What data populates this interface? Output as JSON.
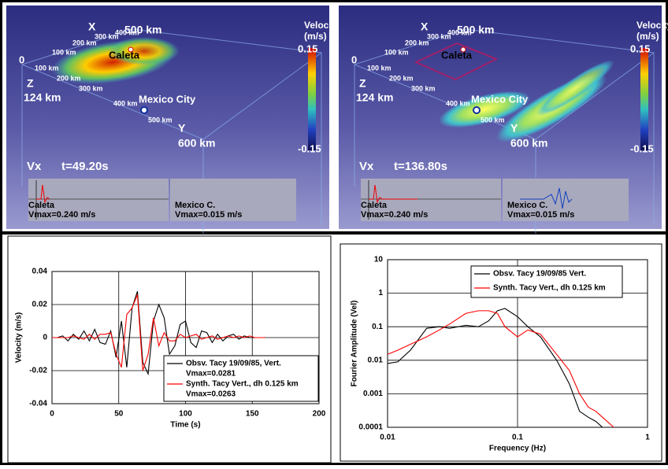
{
  "panels": [
    {
      "labels": [
        "X",
        "500 km",
        "Velocity",
        "(m/s)",
        "0.15",
        "-0.15",
        "0",
        "100 km",
        "200 km",
        "300 km",
        "400 km",
        "Caleta",
        "Z",
        "124 km",
        "100 km",
        "200 km",
        "300 km",
        "400 km",
        "Mexico City",
        "500 km",
        "Y",
        "600 km",
        "Vx",
        "t=49.20s",
        "Caleta",
        "Vmax=0.240 m/s",
        "Mexico C.",
        "Vmax=0.015 m/s"
      ]
    },
    {
      "labels": [
        "X",
        "500 km",
        "Velocity",
        "(m/s)",
        "0.15",
        "-0.15",
        "0",
        "100 km",
        "200 km",
        "300 km",
        "400 km",
        "Caleta",
        "Z",
        "124 km",
        "100 km",
        "200 km",
        "300 km",
        "400 km",
        "Mexico City",
        "500 km",
        "Y",
        "600 km",
        "Vx",
        "t=136.80s",
        "Caleta",
        "Vmax=0.240 m/s",
        "Mexico C.",
        "Vmax=0.015 m/s"
      ]
    }
  ],
  "chart_data": [
    {
      "type": "line",
      "xlabel": "Time (s)",
      "ylabel": "Velocity (m/s)",
      "x": [
        0,
        4,
        8,
        12,
        16,
        20,
        24,
        28,
        32,
        36,
        40,
        44,
        48,
        52,
        56,
        60,
        64,
        68,
        72,
        76,
        80,
        84,
        88,
        92,
        96,
        100,
        104,
        108,
        112,
        116,
        120,
        124,
        128,
        132,
        136,
        140,
        144,
        148,
        152,
        156,
        160
      ],
      "series": [
        {
          "name": "Obsv. Tacy 19/09/85, Vert.",
          "color": "#000000",
          "values": [
            0,
            0,
            0.001,
            -0.002,
            0.002,
            -0.001,
            0.004,
            -0.002,
            0.005,
            -0.003,
            -0.004,
            0.004,
            -0.012,
            0.01,
            -0.018,
            0.018,
            0.028,
            -0.015,
            -0.022,
            0.01,
            0.02,
            0.012,
            -0.01,
            -0.005,
            0.008,
            0.01,
            -0.003,
            -0.006,
            0.004,
            0.003,
            -0.003,
            0.002,
            -0.002,
            0.001,
            0.002,
            -0.001,
            0.001,
            0,
            0,
            0,
            null
          ],
          "note_label": "Vmax=0.0281"
        },
        {
          "name": "Synth. Tacy Vert., dh 0.125 km",
          "color": "#ff0000",
          "values": [
            0,
            0,
            0,
            0,
            0.001,
            0,
            -0.001,
            0.002,
            -0.001,
            0.002,
            0.002,
            0.003,
            -0.01,
            -0.018,
            0.014,
            0.018,
            0.026,
            -0.02,
            -0.01,
            0.012,
            -0.005,
            0.003,
            -0.002,
            -0.002,
            0.002,
            0,
            0.001,
            0.002,
            -0.001,
            0,
            0.001,
            -0.001,
            0,
            0.001,
            0,
            0.001,
            0,
            0.001,
            0,
            0,
            0
          ],
          "note_label": "Vmax=0.0263"
        }
      ],
      "xlim": [
        0,
        200
      ],
      "xticks": [
        0,
        50,
        100,
        150,
        200
      ],
      "ylim": [
        -0.04,
        0.04
      ],
      "yticks": [
        -0.04,
        -0.02,
        0,
        0.02,
        0.04
      ],
      "grid": true,
      "legend": "lower-right"
    },
    {
      "type": "line",
      "xlabel": "Frequency (Hz)",
      "ylabel": "Fourier Amplitude (Vel)",
      "x": [
        0.01,
        0.012,
        0.015,
        0.02,
        0.025,
        0.03,
        0.04,
        0.05,
        0.06,
        0.07,
        0.08,
        0.1,
        0.12,
        0.15,
        0.2,
        0.25,
        0.3,
        0.35,
        0.4,
        0.45,
        0.55
      ],
      "series": [
        {
          "name": "Obsv. Tacy 19/09/85 Vert.",
          "color": "#000000",
          "values": [
            0.008,
            0.009,
            0.02,
            0.09,
            0.1,
            0.09,
            0.11,
            0.1,
            0.15,
            0.3,
            0.35,
            0.2,
            0.1,
            0.05,
            0.01,
            0.002,
            0.0003,
            0.0002,
            0.00015,
            0.0001,
            null
          ]
        },
        {
          "name": "Synth. Tacy Vert., dh 0.125 km",
          "color": "#ff0000",
          "values": [
            0.015,
            0.02,
            0.03,
            0.05,
            0.08,
            0.12,
            0.25,
            0.3,
            0.3,
            0.25,
            0.1,
            0.05,
            0.08,
            0.06,
            0.015,
            0.005,
            0.001,
            0.0004,
            0.0003,
            0.0002,
            0.0001
          ]
        }
      ],
      "xlim": [
        0.01,
        1
      ],
      "xticks": [
        0.01,
        0.1,
        1
      ],
      "xscale": "log",
      "ylim": [
        0.0001,
        10
      ],
      "yticks": [
        0.0001,
        0.001,
        0.01,
        0.1,
        1,
        10
      ],
      "yscale": "log",
      "grid": true,
      "legend": "upper-right"
    }
  ]
}
